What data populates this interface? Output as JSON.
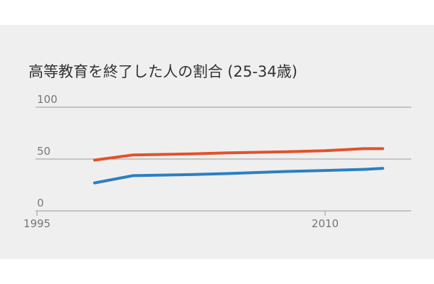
{
  "chart_data": {
    "type": "line",
    "title": "高等教育を終了した人の割合 (25-34歳)",
    "xlabel": "",
    "ylabel": "",
    "ylim": [
      0,
      100
    ],
    "xlim": [
      1995,
      2014
    ],
    "y_ticks": [
      "0",
      "50",
      "100"
    ],
    "x_ticks": [
      "1995",
      "2010"
    ],
    "grid": true,
    "legend": "none",
    "series": [
      {
        "color": "#e2522b",
        "x": [
          1998,
          2000,
          2003,
          2005,
          2008,
          2010,
          2012,
          2013
        ],
        "y": [
          49,
          54,
          55,
          56,
          57,
          58,
          60,
          60
        ]
      },
      {
        "color": "#2c7fc0",
        "x": [
          1998,
          2000,
          2003,
          2005,
          2008,
          2010,
          2012,
          2013
        ],
        "y": [
          27,
          34,
          35,
          36,
          38,
          39,
          40,
          41
        ]
      }
    ]
  }
}
